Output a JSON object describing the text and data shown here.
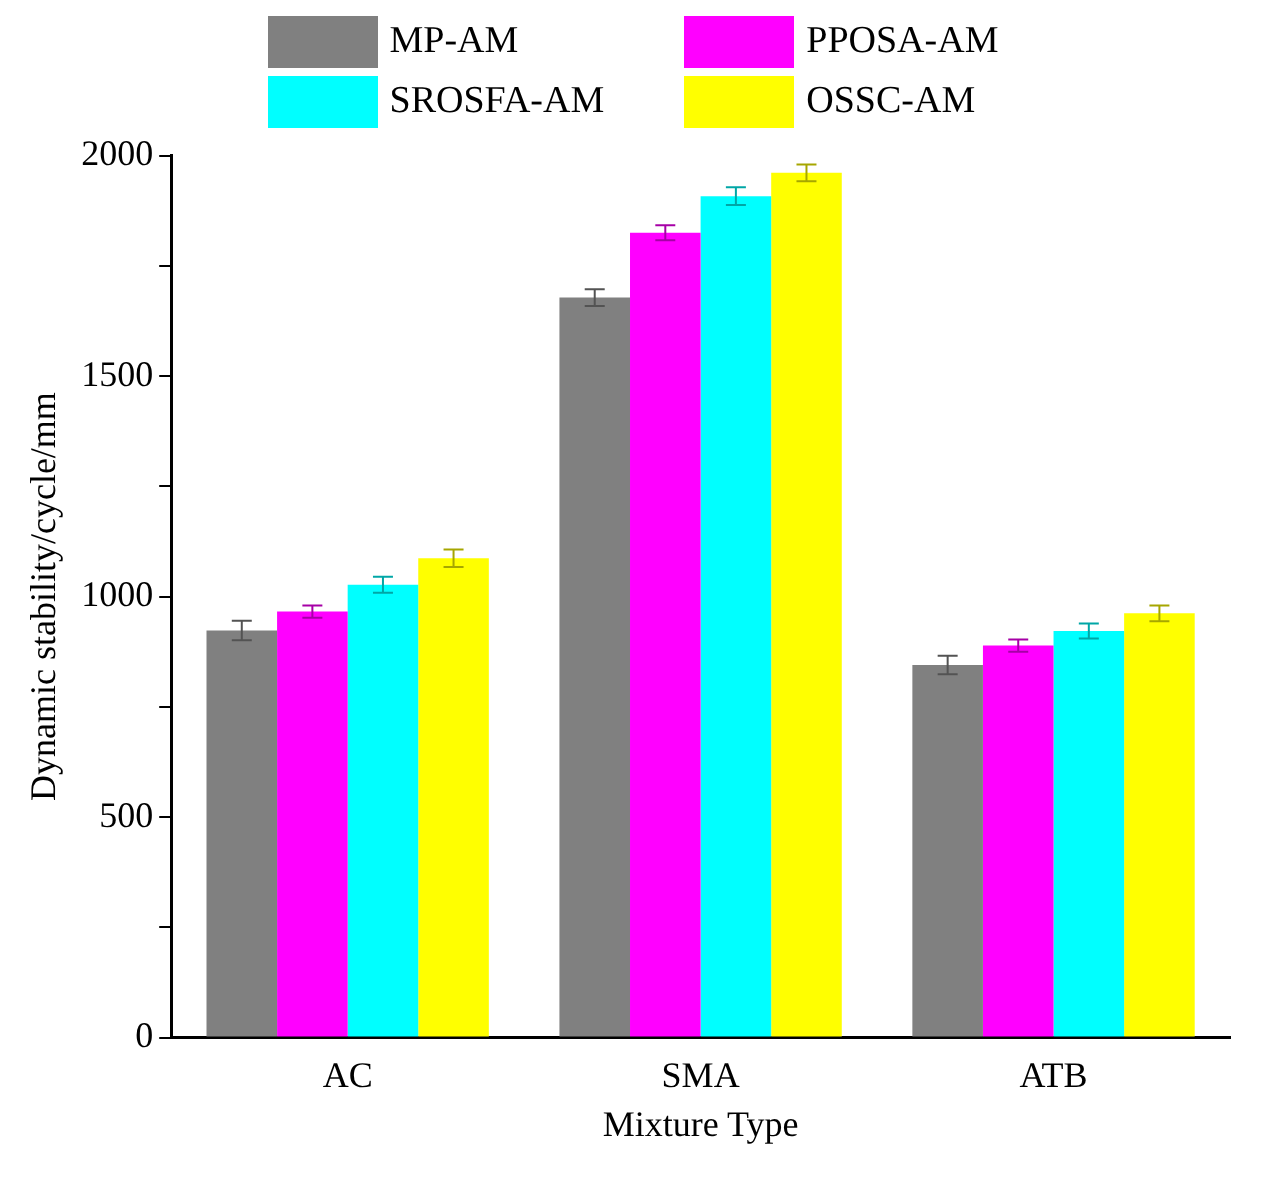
{
  "chart_data": {
    "type": "bar",
    "xlabel": "Mixture Type",
    "ylabel": "Dynamic stability/cycle/mm",
    "categories": [
      "AC",
      "SMA",
      "ATB"
    ],
    "series": [
      {
        "name": "MP-AM",
        "color": "#808080",
        "values": [
          923,
          1678,
          845
        ],
        "errors": [
          22,
          19,
          21
        ]
      },
      {
        "name": "PPOSA-AM",
        "color": "#ff00ff",
        "values": [
          966,
          1825,
          889
        ],
        "errors": [
          14,
          17,
          14
        ]
      },
      {
        "name": "SROSFA-AM",
        "color": "#00ffff",
        "values": [
          1027,
          1908,
          922
        ],
        "errors": [
          18,
          20,
          17
        ]
      },
      {
        "name": "OSSC-AM",
        "color": "#ffff00",
        "values": [
          1087,
          1961,
          962
        ],
        "errors": [
          20,
          19,
          18
        ]
      }
    ],
    "ylim": [
      0,
      2000
    ],
    "yticks": [
      0,
      {
        "value": 250,
        "label": null
      },
      500,
      {
        "value": 750,
        "label": null
      },
      1000,
      {
        "value": 1250,
        "label": null
      },
      1500,
      {
        "value": 1750,
        "label": null
      },
      2000
    ],
    "grid": false,
    "legend": "top"
  }
}
